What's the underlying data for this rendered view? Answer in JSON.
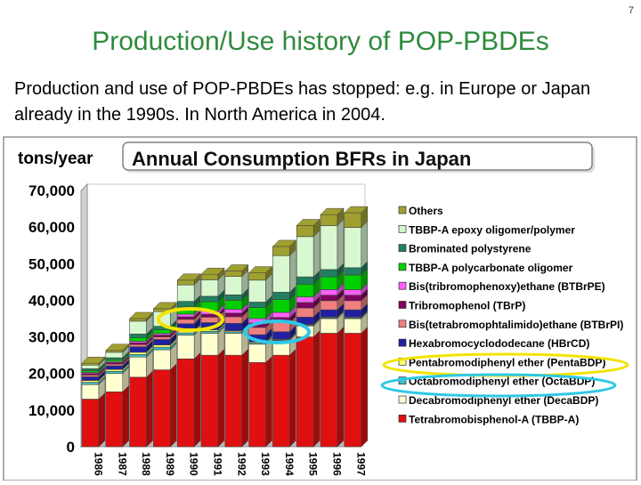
{
  "page_number": "7",
  "slide": {
    "title": "Production/Use history of POP-PBDEs",
    "subtitle": "Production and use of POP-PBDEs has stopped: e.g. in Europe or Japan already in the 1990s. In North America in 2004."
  },
  "colors": {
    "title": "#2e8b3c",
    "highlight_yellow": "#f2e400",
    "highlight_cyan": "#2fc8e6"
  },
  "chart_data": {
    "type": "bar",
    "stacked": true,
    "title": "Annual Consumption BFRs in Japan",
    "ylabel": "tons/year",
    "ylim": [
      0,
      70000
    ],
    "yticks": [
      "0",
      "10,000",
      "20,000",
      "30,000",
      "40,000",
      "50,000",
      "60,000",
      "70,000"
    ],
    "grid": false,
    "legend_position": "right",
    "categories": [
      "1986",
      "1987",
      "1988",
      "1989",
      "1990",
      "1991",
      "1992",
      "1993",
      "1994",
      "1995",
      "1996",
      "1997"
    ],
    "series": [
      {
        "name": "Tetrabromobisphenol-A (TBBP-A)",
        "color": "#e01010",
        "values": [
          13000,
          15000,
          19000,
          21000,
          24000,
          25000,
          25000,
          23000,
          25000,
          30000,
          31000,
          31000
        ]
      },
      {
        "name": "Decabromodiphenyl ether (DecaBDP)",
        "color": "#ffffd0",
        "values": [
          4000,
          5000,
          5500,
          5500,
          6500,
          6000,
          6000,
          5000,
          4000,
          3000,
          4000,
          4000
        ]
      },
      {
        "name": "Octabromodiphenyl ether (OctaBDP)",
        "color": "#40c0c0",
        "values": [
          600,
          600,
          700,
          700,
          600,
          500,
          400,
          300,
          200,
          200,
          200,
          200
        ]
      },
      {
        "name": "Pentabromodiphenyl ether (PentaBDP)",
        "color": "#ffff70",
        "values": [
          500,
          500,
          600,
          600,
          500,
          400,
          300,
          300,
          200,
          200,
          200,
          200
        ]
      },
      {
        "name": "Hexabromocyclododecane (HBrCD)",
        "color": "#2020a0",
        "values": [
          1000,
          1000,
          1500,
          1500,
          2000,
          2000,
          2000,
          2000,
          2000,
          2000,
          2000,
          2000
        ]
      },
      {
        "name": "Bis(tetrabromophtalimido)ethane (BTBrPI)",
        "color": "#f08080",
        "values": [
          500,
          500,
          600,
          700,
          1200,
          1500,
          1800,
          2000,
          2500,
          2500,
          2500,
          2500
        ]
      },
      {
        "name": "Tribromophenol (TBrP)",
        "color": "#800060",
        "values": [
          400,
          400,
          500,
          500,
          700,
          800,
          1000,
          1200,
          1400,
          1500,
          1500,
          1500
        ]
      },
      {
        "name": "Bis(tribromophenoxy)ethane (BTBrPE)",
        "color": "#ff60ff",
        "values": [
          300,
          300,
          400,
          400,
          700,
          900,
          1000,
          1200,
          1400,
          1500,
          1500,
          1500
        ]
      },
      {
        "name": "TBBP-A polycarbonate oligomer",
        "color": "#00d000",
        "values": [
          500,
          500,
          1000,
          1000,
          2000,
          2500,
          2500,
          3000,
          3500,
          3500,
          3500,
          4000
        ]
      },
      {
        "name": "Brominated polystyrene",
        "color": "#208060",
        "values": [
          500,
          500,
          1000,
          1000,
          1500,
          1500,
          1500,
          1500,
          2000,
          2000,
          2000,
          2000
        ]
      },
      {
        "name": "TBBP-A epoxy oligomer/polymer",
        "color": "#d8f8d0",
        "values": [
          1000,
          1500,
          3500,
          4000,
          4500,
          4500,
          5000,
          6000,
          10000,
          11000,
          12000,
          11000
        ]
      },
      {
        "name": "Others",
        "color": "#a0a030",
        "values": [
          500,
          500,
          700,
          800,
          1300,
          1500,
          1500,
          2000,
          2500,
          3000,
          3000,
          4000
        ]
      }
    ]
  }
}
